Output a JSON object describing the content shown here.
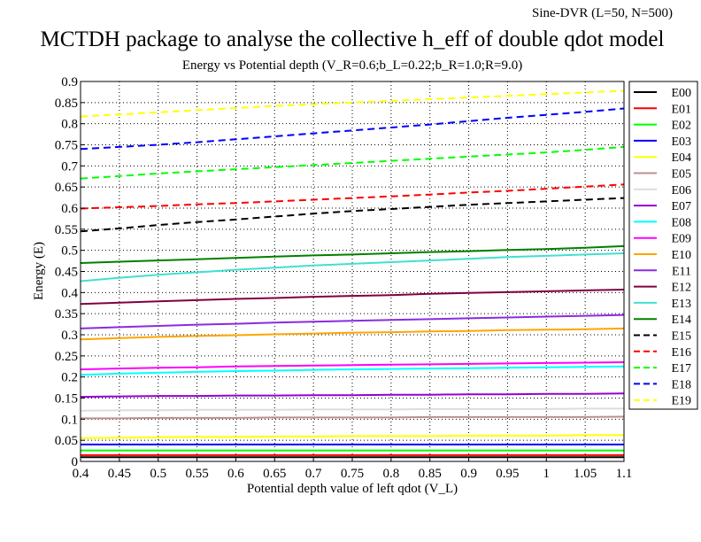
{
  "header": {
    "corner_note": "Sine-DVR (L=50, N=500)",
    "title": "MCTDH package to analyse the collective h_eff of double qdot model",
    "subtitle": "Energy vs Potential depth (V_R=0.6;b_L=0.22;b_R=1.0;R=9.0)"
  },
  "chart_data": {
    "type": "line",
    "title": "MCTDH package to analyse the collective h_eff of double qdot model",
    "subtitle": "Energy vs Potential depth (V_R=0.6;b_L=0.22;b_R=1.0;R=9.0)",
    "xlabel": "Potential depth value of left qdot (V_L)",
    "ylabel": "Energy (E)",
    "xlim": [
      0.4,
      1.1
    ],
    "ylim": [
      0,
      0.9
    ],
    "x_ticks": [
      "0.4",
      "0.45",
      "0.5",
      "0.55",
      "0.6",
      "0.65",
      "0.7",
      "0.75",
      "0.8",
      "0.85",
      "0.9",
      "0.95",
      "1",
      "1.05",
      "1.1"
    ],
    "y_ticks": [
      "0",
      "0.05",
      "0.1",
      "0.15",
      "0.2",
      "0.25",
      "0.3",
      "0.35",
      "0.4",
      "0.45",
      "0.5",
      "0.55",
      "0.6",
      "0.65",
      "0.7",
      "0.75",
      "0.8",
      "0.85",
      "0.9"
    ],
    "grid": true,
    "legend_position": "right-outside",
    "x": [
      0.4,
      0.45,
      0.5,
      0.55,
      0.6,
      0.65,
      0.7,
      0.75,
      0.8,
      0.85,
      0.9,
      0.95,
      1.0,
      1.05,
      1.1
    ],
    "series": [
      {
        "name": "E00",
        "color": "#000000",
        "dash": "solid",
        "values": [
          0.01,
          0.01,
          0.01,
          0.01,
          0.01,
          0.01,
          0.01,
          0.01,
          0.01,
          0.01,
          0.01,
          0.01,
          0.01,
          0.01,
          0.01
        ]
      },
      {
        "name": "E01",
        "color": "#ff0000",
        "dash": "solid",
        "values": [
          0.015,
          0.015,
          0.015,
          0.015,
          0.015,
          0.015,
          0.015,
          0.015,
          0.015,
          0.015,
          0.015,
          0.015,
          0.015,
          0.015,
          0.015
        ]
      },
      {
        "name": "E02",
        "color": "#00ff00",
        "dash": "solid",
        "values": [
          0.026,
          0.026,
          0.026,
          0.026,
          0.026,
          0.026,
          0.026,
          0.026,
          0.026,
          0.026,
          0.026,
          0.026,
          0.026,
          0.026,
          0.026
        ]
      },
      {
        "name": "E03",
        "color": "#0000ff",
        "dash": "solid",
        "values": [
          0.04,
          0.04,
          0.04,
          0.04,
          0.04,
          0.04,
          0.04,
          0.04,
          0.04,
          0.04,
          0.04,
          0.04,
          0.04,
          0.04,
          0.04
        ]
      },
      {
        "name": "E04",
        "color": "#ffff00",
        "dash": "solid",
        "values": [
          0.055,
          0.056,
          0.057,
          0.058,
          0.058,
          0.059,
          0.059,
          0.06,
          0.06,
          0.06,
          0.061,
          0.061,
          0.061,
          0.062,
          0.062
        ]
      },
      {
        "name": "E05",
        "color": "#bc8f8f",
        "dash": "solid",
        "values": [
          0.102,
          0.102,
          0.103,
          0.103,
          0.103,
          0.104,
          0.104,
          0.104,
          0.104,
          0.105,
          0.105,
          0.105,
          0.105,
          0.105,
          0.106
        ]
      },
      {
        "name": "E06",
        "color": "#dcdcdc",
        "dash": "solid",
        "values": [
          0.12,
          0.121,
          0.121,
          0.122,
          0.122,
          0.122,
          0.123,
          0.123,
          0.123,
          0.124,
          0.124,
          0.124,
          0.124,
          0.125,
          0.125
        ]
      },
      {
        "name": "E07",
        "color": "#9400d3",
        "dash": "solid",
        "values": [
          0.153,
          0.154,
          0.155,
          0.155,
          0.156,
          0.156,
          0.157,
          0.157,
          0.158,
          0.158,
          0.159,
          0.159,
          0.16,
          0.16,
          0.161
        ]
      },
      {
        "name": "E08",
        "color": "#00ffff",
        "dash": "solid",
        "values": [
          0.205,
          0.208,
          0.21,
          0.212,
          0.214,
          0.215,
          0.217,
          0.218,
          0.219,
          0.22,
          0.221,
          0.222,
          0.223,
          0.224,
          0.225
        ]
      },
      {
        "name": "E09",
        "color": "#ff00ff",
        "dash": "solid",
        "values": [
          0.218,
          0.22,
          0.222,
          0.223,
          0.225,
          0.226,
          0.227,
          0.228,
          0.229,
          0.23,
          0.231,
          0.232,
          0.233,
          0.234,
          0.235
        ]
      },
      {
        "name": "E10",
        "color": "#ffa500",
        "dash": "solid",
        "values": [
          0.289,
          0.292,
          0.295,
          0.297,
          0.299,
          0.301,
          0.303,
          0.305,
          0.306,
          0.308,
          0.309,
          0.311,
          0.312,
          0.313,
          0.315
        ]
      },
      {
        "name": "E11",
        "color": "#8a2be2",
        "dash": "solid",
        "values": [
          0.315,
          0.318,
          0.321,
          0.324,
          0.326,
          0.329,
          0.331,
          0.333,
          0.335,
          0.337,
          0.339,
          0.341,
          0.343,
          0.345,
          0.347
        ]
      },
      {
        "name": "E12",
        "color": "#800040",
        "dash": "solid",
        "values": [
          0.373,
          0.376,
          0.379,
          0.382,
          0.385,
          0.387,
          0.39,
          0.392,
          0.394,
          0.397,
          0.399,
          0.401,
          0.403,
          0.405,
          0.407
        ]
      },
      {
        "name": "E13",
        "color": "#40e0d0",
        "dash": "solid",
        "values": [
          0.427,
          0.435,
          0.442,
          0.448,
          0.454,
          0.459,
          0.464,
          0.468,
          0.472,
          0.476,
          0.48,
          0.484,
          0.487,
          0.49,
          0.493
        ]
      },
      {
        "name": "E14",
        "color": "#008000",
        "dash": "solid",
        "values": [
          0.47,
          0.473,
          0.476,
          0.479,
          0.482,
          0.485,
          0.488,
          0.49,
          0.493,
          0.496,
          0.498,
          0.501,
          0.503,
          0.506,
          0.51
        ]
      },
      {
        "name": "E15",
        "color": "#000000",
        "dash": "dashed",
        "values": [
          0.545,
          0.552,
          0.56,
          0.567,
          0.573,
          0.58,
          0.587,
          0.593,
          0.598,
          0.603,
          0.608,
          0.612,
          0.616,
          0.62,
          0.624
        ]
      },
      {
        "name": "E16",
        "color": "#ff0000",
        "dash": "dashed",
        "values": [
          0.599,
          0.602,
          0.605,
          0.609,
          0.612,
          0.616,
          0.62,
          0.624,
          0.628,
          0.632,
          0.637,
          0.641,
          0.646,
          0.651,
          0.656
        ]
      },
      {
        "name": "E17",
        "color": "#00ff00",
        "dash": "dashed",
        "values": [
          0.67,
          0.676,
          0.682,
          0.687,
          0.692,
          0.697,
          0.702,
          0.707,
          0.712,
          0.717,
          0.722,
          0.727,
          0.732,
          0.738,
          0.745
        ]
      },
      {
        "name": "E18",
        "color": "#0000ff",
        "dash": "dashed",
        "values": [
          0.74,
          0.745,
          0.75,
          0.756,
          0.763,
          0.77,
          0.777,
          0.784,
          0.791,
          0.798,
          0.806,
          0.814,
          0.821,
          0.828,
          0.836
        ]
      },
      {
        "name": "E19",
        "color": "#ffff00",
        "dash": "dashed",
        "values": [
          0.817,
          0.822,
          0.827,
          0.832,
          0.837,
          0.842,
          0.846,
          0.85,
          0.854,
          0.858,
          0.862,
          0.866,
          0.87,
          0.874,
          0.878
        ]
      }
    ]
  }
}
